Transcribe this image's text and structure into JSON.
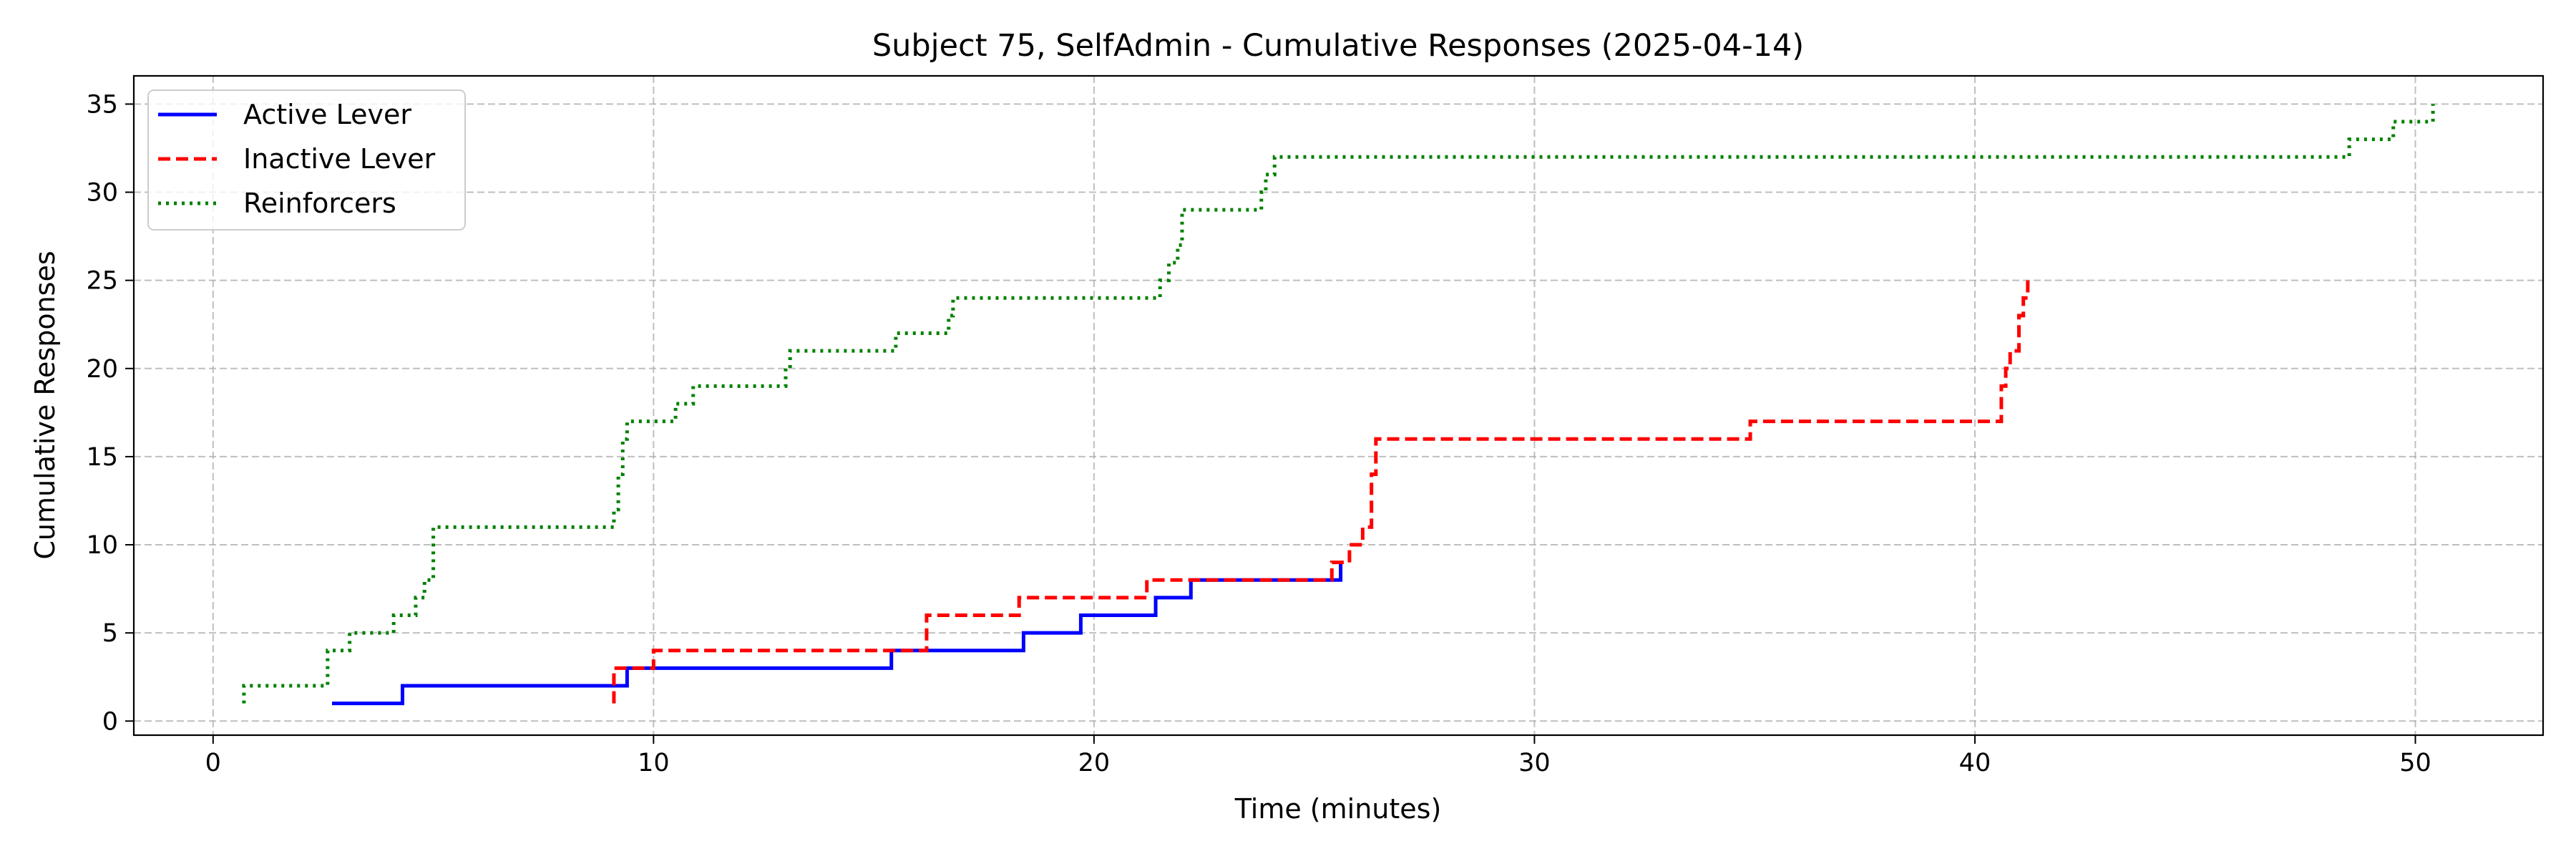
{
  "chart_data": {
    "type": "line",
    "title": "Subject 75, SelfAdmin - Cumulative Responses (2025-04-14)",
    "xlabel": "Time (minutes)",
    "ylabel": "Cumulative Responses",
    "xlim": [
      -1.8,
      52.9
    ],
    "ylim": [
      -0.8,
      36.6
    ],
    "xticks": [
      0,
      10,
      20,
      30,
      40,
      50
    ],
    "yticks": [
      0,
      5,
      10,
      15,
      20,
      25,
      30,
      35
    ],
    "grid": true,
    "legend_position": "upper-left",
    "series": [
      {
        "name": "Active Lever",
        "color": "#0000ff",
        "linestyle": "solid",
        "drawstyle": "steps-post",
        "x": [
          2.7,
          4.3,
          9.4,
          15.4,
          18.4,
          19.7,
          21.4,
          22.2,
          25.6,
          25.6
        ],
        "y": [
          1,
          2,
          3,
          4,
          5,
          6,
          7,
          8,
          9,
          9
        ]
      },
      {
        "name": "Inactive Lever",
        "color": "#ff0000",
        "linestyle": "dashed",
        "drawstyle": "steps-post",
        "x": [
          9.1,
          9.1,
          10.0,
          16.2,
          18.3,
          21.2,
          25.4,
          25.8,
          26.1,
          26.3,
          26.4,
          34.9,
          40.6,
          40.7,
          40.8,
          41.0,
          41.1,
          41.2
        ],
        "y": [
          1,
          3,
          4,
          6,
          7,
          8,
          9,
          10,
          11,
          14,
          16,
          17,
          19,
          20,
          21,
          23,
          24,
          25
        ]
      },
      {
        "name": "Reinforcers",
        "color": "#008000",
        "linestyle": "dotted",
        "drawstyle": "steps-post",
        "x": [
          0.7,
          0.7,
          2.6,
          2.6,
          3.1,
          4.1,
          4.6,
          4.8,
          5.0,
          9.1,
          9.2,
          9.3,
          9.4,
          10.5,
          10.9,
          13.0,
          13.1,
          15.5,
          16.7,
          16.8,
          21.5,
          21.7,
          21.9,
          22.0,
          23.8,
          23.9,
          24.1,
          48.5,
          49.5,
          50.3,
          50.4
        ],
        "y": [
          1,
          2,
          3,
          4,
          5,
          6,
          7,
          8,
          11,
          12,
          14,
          16,
          17,
          18,
          19,
          20,
          21,
          22,
          23,
          24,
          25,
          26,
          27,
          29,
          30,
          31,
          32,
          33,
          34,
          34,
          35
        ]
      }
    ]
  }
}
